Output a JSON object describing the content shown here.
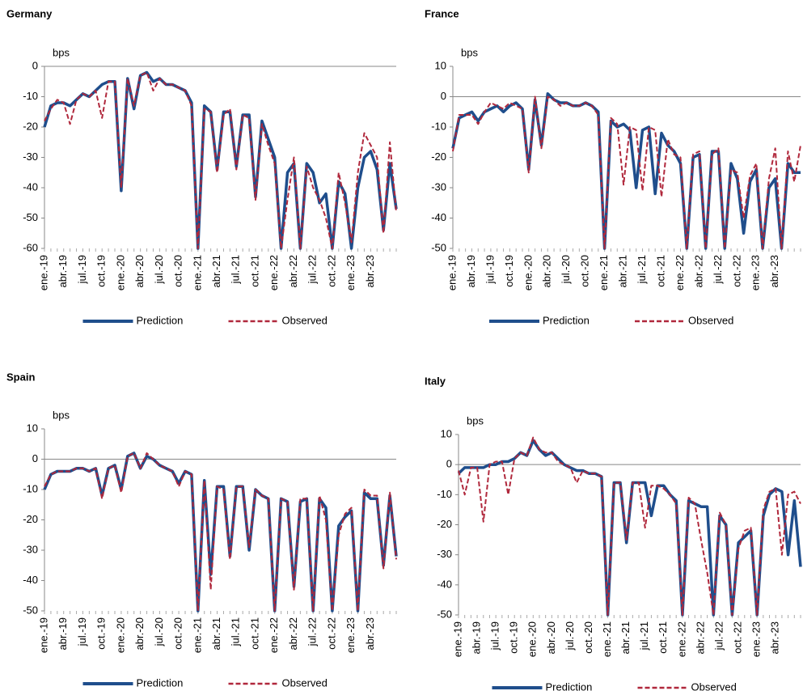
{
  "chart_data": [
    {
      "type": "line",
      "title": "Germany",
      "y_label": "bps",
      "categories": [
        "ene.-19",
        null,
        null,
        "abr.-19",
        null,
        null,
        "jul.-19",
        null,
        null,
        "oct.-19",
        null,
        null,
        "ene.-20",
        null,
        null,
        "abr.-20",
        null,
        null,
        "jul.-20",
        null,
        null,
        "oct.-20",
        null,
        null,
        "ene.-21",
        null,
        null,
        "abr.-21",
        null,
        null,
        "jul.-21",
        null,
        null,
        "oct.-21",
        null,
        null,
        "ene.-22",
        null,
        null,
        "abr.-22",
        null,
        null,
        "jul.-22",
        null,
        null,
        "oct.-22",
        null,
        null,
        "ene.-23",
        null,
        null,
        "abr.-23",
        null,
        null,
        null,
        null
      ],
      "ylim": [
        -60,
        0
      ],
      "yticks": [
        -60,
        -50,
        -40,
        -30,
        -20,
        -10,
        0
      ],
      "series": [
        {
          "name": "Prediction",
          "color": "#1f4e8c",
          "line_style": "solid",
          "values": [
            -20,
            -13,
            -12,
            -12,
            -13,
            -11,
            -9,
            -10,
            -8,
            -6,
            -5,
            -5,
            -41,
            -4,
            -14,
            -3,
            -2,
            -5,
            -4,
            -6,
            -6,
            -7,
            -8,
            -12,
            -60,
            -13,
            -15,
            -34,
            -15,
            -15,
            -33,
            -16,
            -16,
            -43,
            -18,
            -24,
            -30,
            -60,
            -35,
            -32,
            -60,
            -32,
            -35,
            -45,
            -42,
            -60,
            -38,
            -42,
            -60,
            -40,
            -30,
            -28,
            -34,
            -54,
            -32,
            -47
          ]
        },
        {
          "name": "Observed",
          "color": "#b0283c",
          "line_style": "dashed",
          "values": [
            -18,
            -14,
            -11,
            -12,
            -19,
            -11,
            -9,
            -10,
            -8,
            -17,
            -5,
            -5,
            -40,
            -4,
            -13,
            -3,
            -2,
            -8,
            -4,
            -6,
            -6,
            -7,
            -8,
            -13,
            -60,
            -14,
            -15,
            -35,
            -16,
            -14,
            -34,
            -16,
            -17,
            -44,
            -19,
            -26,
            -32,
            -60,
            -44,
            -30,
            -60,
            -33,
            -40,
            -44,
            -50,
            -60,
            -35,
            -45,
            -58,
            -35,
            -22,
            -26,
            -30,
            -55,
            -25,
            -48
          ]
        }
      ]
    },
    {
      "type": "line",
      "title": "France",
      "y_label": "bps",
      "categories": [
        "ene.-19",
        null,
        null,
        "abr.-19",
        null,
        null,
        "jul.-19",
        null,
        null,
        "oct.-19",
        null,
        null,
        "ene.-20",
        null,
        null,
        "abr.-20",
        null,
        null,
        "jul.-20",
        null,
        null,
        "oct.-20",
        null,
        null,
        "ene.-21",
        null,
        null,
        "abr.-21",
        null,
        null,
        "jul.-21",
        null,
        null,
        "oct.-21",
        null,
        null,
        "ene.-22",
        null,
        null,
        "abr.-22",
        null,
        null,
        "jul.-22",
        null,
        null,
        "oct.-22",
        null,
        null,
        "ene.-23",
        null,
        null,
        "abr.-23",
        null,
        null,
        null,
        null
      ],
      "ylim": [
        -50,
        10
      ],
      "yticks": [
        -50,
        -40,
        -30,
        -20,
        -10,
        0,
        10
      ],
      "series": [
        {
          "name": "Prediction",
          "color": "#1f4e8c",
          "line_style": "solid",
          "values": [
            -17,
            -7,
            -6,
            -5,
            -8,
            -5,
            -4,
            -3,
            -5,
            -3,
            -2,
            -4,
            -24,
            -1,
            -16,
            1,
            -1,
            -2,
            -2,
            -3,
            -3,
            -2,
            -3,
            -5,
            -50,
            -8,
            -10,
            -9,
            -11,
            -30,
            -11,
            -10,
            -32,
            -12,
            -16,
            -18,
            -22,
            -50,
            -20,
            -19,
            -50,
            -18,
            -18,
            -50,
            -22,
            -27,
            -45,
            -28,
            -24,
            -50,
            -30,
            -27,
            -50,
            -22,
            -25,
            -25
          ]
        },
        {
          "name": "Observed",
          "color": "#b0283c",
          "line_style": "dashed",
          "values": [
            -18,
            -6,
            -6,
            -6,
            -9,
            -5,
            -2,
            -3,
            -4,
            -2,
            -3,
            -4,
            -25,
            0,
            -17,
            0,
            -1,
            -3,
            -2,
            -3,
            -3,
            -2,
            -3,
            -6,
            -50,
            -7,
            -9,
            -29,
            -10,
            -11,
            -31,
            -10,
            -11,
            -33,
            -14,
            -19,
            -20,
            -50,
            -19,
            -18,
            -50,
            -19,
            -17,
            -50,
            -24,
            -25,
            -40,
            -26,
            -22,
            -50,
            -27,
            -17,
            -50,
            -18,
            -28,
            -16
          ]
        }
      ]
    },
    {
      "type": "line",
      "title": "Spain",
      "y_label": "bps",
      "categories": [
        "ene.-19",
        null,
        null,
        "abr.-19",
        null,
        null,
        "jul.-19",
        null,
        null,
        "oct.-19",
        null,
        null,
        "ene.-20",
        null,
        null,
        "abr.-20",
        null,
        null,
        "jul.-20",
        null,
        null,
        "oct.-20",
        null,
        null,
        "ene.-21",
        null,
        null,
        "abr.-21",
        null,
        null,
        "jul.-21",
        null,
        null,
        "oct.-21",
        null,
        null,
        "ene.-22",
        null,
        null,
        "abr.-22",
        null,
        null,
        "jul.-22",
        null,
        null,
        "oct.-22",
        null,
        null,
        "ene.-23",
        null,
        null,
        "abr.-23",
        null,
        null,
        null,
        null
      ],
      "ylim": [
        -50,
        10
      ],
      "yticks": [
        -50,
        -40,
        -30,
        -20,
        -10,
        0,
        10
      ],
      "series": [
        {
          "name": "Prediction",
          "color": "#1f4e8c",
          "line_style": "solid",
          "values": [
            -10,
            -5,
            -4,
            -4,
            -4,
            -3,
            -3,
            -4,
            -3,
            -12,
            -3,
            -2,
            -10,
            1,
            2,
            -3,
            1,
            0,
            -2,
            -3,
            -4,
            -8,
            -4,
            -5,
            -50,
            -7,
            -38,
            -9,
            -9,
            -32,
            -9,
            -9,
            -30,
            -10,
            -12,
            -13,
            -50,
            -13,
            -14,
            -42,
            -14,
            -13,
            -50,
            -13,
            -16,
            -50,
            -22,
            -19,
            -17,
            -50,
            -11,
            -13,
            -13,
            -35,
            -12,
            -32
          ]
        },
        {
          "name": "Observed",
          "color": "#b0283c",
          "line_style": "dashed",
          "values": [
            -9,
            -5,
            -4,
            -4,
            -4,
            -3,
            -3,
            -4,
            -3,
            -13,
            -3,
            -2,
            -11,
            1,
            2,
            -3,
            2,
            0,
            -2,
            -3,
            -4,
            -9,
            -4,
            -5,
            -50,
            -7,
            -43,
            -9,
            -10,
            -33,
            -9,
            -9,
            -29,
            -10,
            -12,
            -13,
            -50,
            -13,
            -14,
            -43,
            -13,
            -13,
            -50,
            -12,
            -20,
            -50,
            -25,
            -18,
            -16,
            -50,
            -10,
            -12,
            -12,
            -36,
            -11,
            -33
          ]
        }
      ]
    },
    {
      "type": "line",
      "title": "Italy",
      "y_label": "bps",
      "categories": [
        "ene.-19",
        null,
        null,
        "abr.-19",
        null,
        null,
        "jul.-19",
        null,
        null,
        "oct.-19",
        null,
        null,
        "ene.-20",
        null,
        null,
        "abr.-20",
        null,
        null,
        "jul.-20",
        null,
        null,
        "oct.-20",
        null,
        null,
        "ene.-21",
        null,
        null,
        "abr.-21",
        null,
        null,
        "jul.-21",
        null,
        null,
        "oct.-21",
        null,
        null,
        "ene.-22",
        null,
        null,
        "abr.-22",
        null,
        null,
        "jul.-22",
        null,
        null,
        "oct.-22",
        null,
        null,
        "ene.-23",
        null,
        null,
        "abr.-23",
        null,
        null,
        null,
        null
      ],
      "ylim": [
        -50,
        10
      ],
      "yticks": [
        -50,
        -40,
        -30,
        -20,
        -10,
        0,
        10
      ],
      "series": [
        {
          "name": "Prediction",
          "color": "#1f4e8c",
          "line_style": "solid",
          "values": [
            -3,
            -1,
            -1,
            -1,
            -1,
            0,
            0,
            1,
            1,
            2,
            4,
            3,
            8,
            5,
            3,
            4,
            2,
            0,
            -1,
            -2,
            -2,
            -3,
            -3,
            -4,
            -50,
            -6,
            -6,
            -26,
            -6,
            -6,
            -6,
            -17,
            -7,
            -7,
            -10,
            -12,
            -50,
            -12,
            -13,
            -14,
            -14,
            -50,
            -17,
            -20,
            -50,
            -26,
            -24,
            -22,
            -50,
            -17,
            -10,
            -8,
            -9,
            -30,
            -12,
            -34
          ]
        },
        {
          "name": "Observed",
          "color": "#b0283c",
          "line_style": "dashed",
          "values": [
            -2,
            -10,
            -1,
            -1,
            -19,
            0,
            1,
            1,
            -10,
            2,
            4,
            3,
            9,
            5,
            4,
            4,
            1,
            0,
            -1,
            -6,
            -2,
            -3,
            -3,
            -4,
            -50,
            -6,
            -6,
            -25,
            -6,
            -6,
            -21,
            -7,
            -7,
            -8,
            -10,
            -13,
            -50,
            -11,
            -13,
            -25,
            -36,
            -50,
            -16,
            -20,
            -50,
            -28,
            -22,
            -21,
            -50,
            -15,
            -9,
            -8,
            -30,
            -10,
            -9,
            -13
          ]
        }
      ]
    }
  ]
}
